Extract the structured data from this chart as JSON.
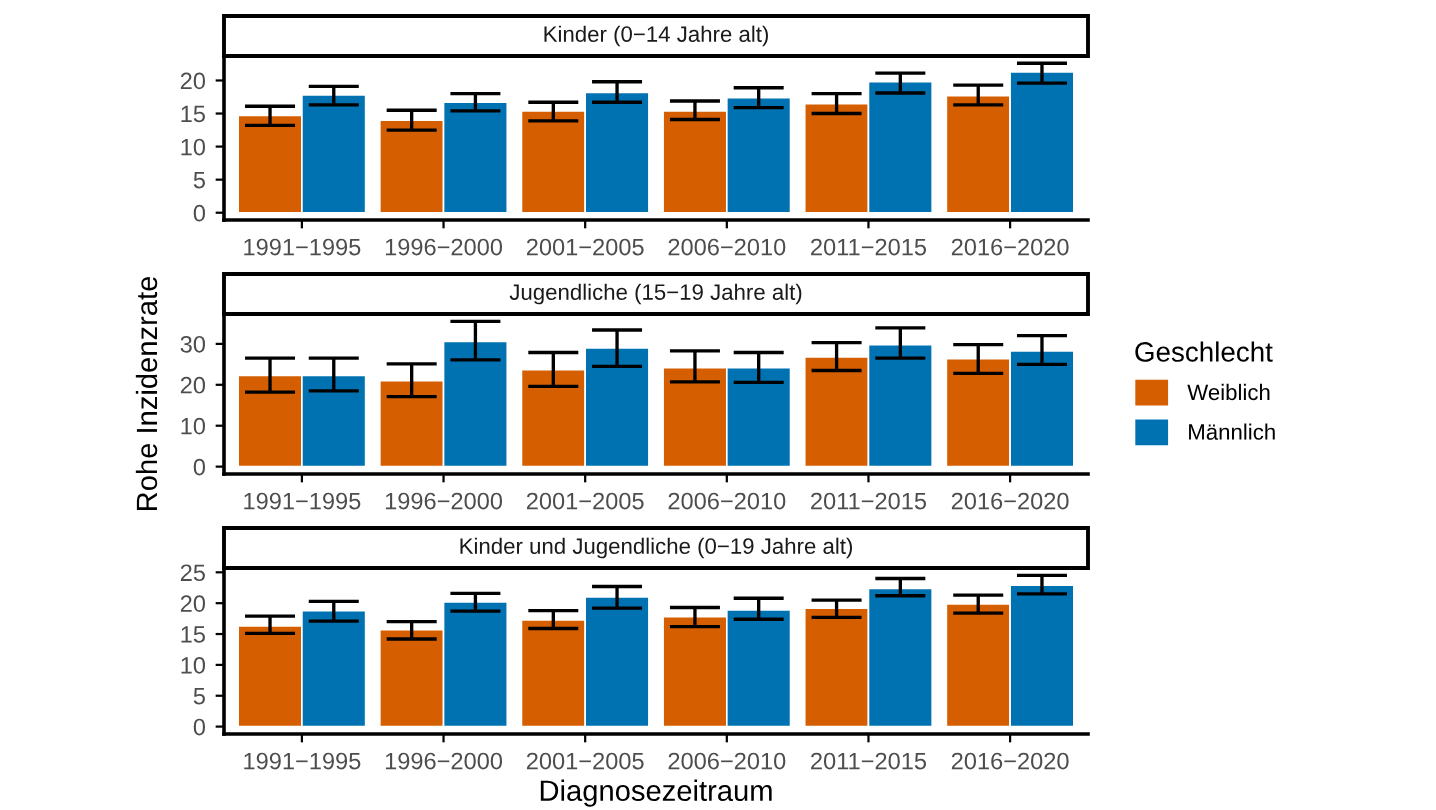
{
  "chart_data": [
    {
      "type": "bar",
      "title": "Kinder (0−14 Jahre alt)",
      "categories": [
        "1991−1995",
        "1996−2000",
        "2001−2005",
        "2006−2010",
        "2011−2015",
        "2016−2020"
      ],
      "ylim": [
        -1.1,
        23.7
      ],
      "yticks": [
        0,
        5,
        10,
        15,
        20
      ],
      "grid": false,
      "legend": false,
      "series": [
        {
          "color": "#d55e00",
          "values": [
            14.7,
            14.0,
            15.4,
            15.4,
            16.5,
            17.7
          ],
          "errors": [
            [
              13.2,
              16.1
            ],
            [
              12.5,
              15.5
            ],
            [
              13.9,
              16.7
            ],
            [
              14.1,
              16.9
            ],
            [
              15.0,
              18.0
            ],
            [
              16.3,
              19.3
            ]
          ]
        },
        {
          "color": "#0072b2",
          "values": [
            17.8,
            16.7,
            18.2,
            17.4,
            19.8,
            21.3
          ],
          "errors": [
            [
              16.3,
              19.1
            ],
            [
              15.4,
              18.0
            ],
            [
              16.7,
              19.8
            ],
            [
              15.9,
              18.9
            ],
            [
              18.1,
              21.1
            ],
            [
              19.6,
              22.6
            ]
          ]
        }
      ]
    },
    {
      "type": "bar",
      "title": "Jugendliche (15−19 Jahre alt)",
      "ylabel": "Rohe Inzidenzrate",
      "legend_title": "Geschlecht",
      "legend": "right",
      "categories": [
        "1991−1995",
        "1996−2000",
        "2001−2005",
        "2006−2010",
        "2011−2015",
        "2016−2020"
      ],
      "ylim": [
        -1.8,
        37.3
      ],
      "yticks": [
        0,
        10,
        20,
        30
      ],
      "grid": false,
      "series": [
        {
          "name": "Weiblich",
          "color": "#d55e00",
          "values": [
            22.3,
            21.0,
            23.7,
            24.2,
            26.8,
            26.4
          ],
          "errors": [
            [
              18.2,
              26.5
            ],
            [
              17.1,
              25.1
            ],
            [
              19.6,
              27.9
            ],
            [
              20.7,
              28.3
            ],
            [
              23.5,
              30.3
            ],
            [
              22.8,
              29.8
            ]
          ]
        },
        {
          "name": "Männlich",
          "color": "#0072b2",
          "values": [
            22.3,
            30.6,
            29.0,
            24.2,
            29.8,
            28.3
          ],
          "errors": [
            [
              18.5,
              26.5
            ],
            [
              26.1,
              35.5
            ],
            [
              24.5,
              33.4
            ],
            [
              20.6,
              27.9
            ],
            [
              26.5,
              33.9
            ],
            [
              25.0,
              32.0
            ]
          ]
        }
      ]
    },
    {
      "type": "bar",
      "title": "Kinder und Jugendliche (0−19 Jahre alt)",
      "xlabel": "Diagnosezeitraum",
      "categories": [
        "1991−1995",
        "1996−2000",
        "2001−2005",
        "2006−2010",
        "2011−2015",
        "2016−2020"
      ],
      "ylim": [
        -1.2,
        25.7
      ],
      "yticks": [
        0,
        5,
        10,
        15,
        20,
        25
      ],
      "grid": false,
      "legend": false,
      "series": [
        {
          "color": "#d55e00",
          "values": [
            16.3,
            15.7,
            17.3,
            17.8,
            19.2,
            19.9
          ],
          "errors": [
            [
              15.1,
              17.9
            ],
            [
              14.2,
              17.0
            ],
            [
              15.9,
              18.8
            ],
            [
              16.2,
              19.3
            ],
            [
              17.7,
              20.5
            ],
            [
              18.4,
              21.3
            ]
          ]
        },
        {
          "color": "#0072b2",
          "values": [
            18.8,
            20.2,
            21.0,
            18.9,
            22.4,
            22.9
          ],
          "errors": [
            [
              17.1,
              20.3
            ],
            [
              18.7,
              21.6
            ],
            [
              19.2,
              22.7
            ],
            [
              17.4,
              20.8
            ],
            [
              21.2,
              24.0
            ],
            [
              21.5,
              24.5
            ]
          ]
        }
      ]
    }
  ]
}
